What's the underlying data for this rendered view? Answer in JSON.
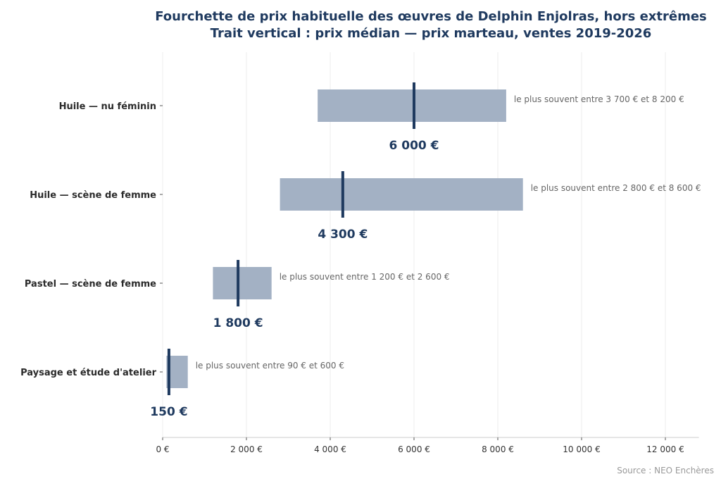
{
  "colors": {
    "bar": "#a3b1c4",
    "median": "#1f3a5f",
    "title": "#1f3a5f",
    "category_label": "#2b2b2b",
    "annotation": "#666666",
    "tick_label": "#333333",
    "grid": "#ececec",
    "axis": "#cccccc",
    "source": "#999999"
  },
  "chart_data": {
    "type": "bar",
    "orientation": "horizontal",
    "title": "Fourchette de prix habituelle des œuvres de Delphin Enjolras, hors extrêmes",
    "subtitle": "Trait vertical : prix médian — prix marteau, ventes 2019-2026",
    "categories": [
      "Huile — nu féminin",
      "Huile — scène de femme",
      "Pastel — scène de femme",
      "Paysage et étude d'atelier"
    ],
    "ranges": [
      {
        "low": 3700,
        "high": 8200,
        "median": 6000,
        "median_label": "6 000 €",
        "range_label": "le plus souvent entre 3 700 € et 8 200 €"
      },
      {
        "low": 2800,
        "high": 8600,
        "median": 4300,
        "median_label": "4 300 €",
        "range_label": "le plus souvent entre 2 800 € et 8 600 €"
      },
      {
        "low": 1200,
        "high": 2600,
        "median": 1800,
        "median_label": "1 800 €",
        "range_label": "le plus souvent entre 1 200 € et 2 600 €"
      },
      {
        "low": 90,
        "high": 600,
        "median": 150,
        "median_label": "150 €",
        "range_label": "le plus souvent entre 90 € et 600 €"
      }
    ],
    "x_ticks": [
      0,
      2000,
      4000,
      6000,
      8000,
      10000,
      12000
    ],
    "x_tick_labels": [
      "0 €",
      "2 000 €",
      "4 000 €",
      "6 000 €",
      "8 000 €",
      "10 000 €",
      "12 000 €"
    ],
    "xlim": [
      0,
      12800
    ],
    "grid": "vertical",
    "xlabel": "",
    "ylabel": ""
  },
  "source": "Source : NEO Enchères"
}
